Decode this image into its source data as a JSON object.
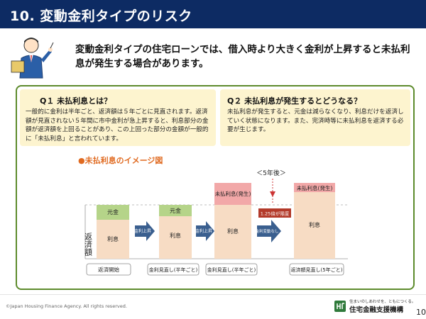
{
  "header": {
    "title": "10.  変動金利タイプのリスク"
  },
  "intro": {
    "text": "変動金利タイプの住宅ローンでは、借入時より大きく金利が上昇すると未払利息が発生する場合があります。"
  },
  "qa": [
    {
      "question": "Q１ 未払利息とは？",
      "answer": "一般的に金利は半年ごと、返済額は５年ごとに見直されます。返済額が見直されない５年間に市中金利が急上昇すると、利息部分の金額が返済額を上回ることがあり、この上回った部分の金額が一般的に「未払利息」と言われています。"
    },
    {
      "question": "Q２ 未払利息が発生するとどうなる？",
      "answer": "未払利息が発生すると、元金は減らなくなり、利息だけを返済していく状態になります。また、完済時等に未払利息を返済する必要が生じます。"
    }
  ],
  "diagram": {
    "label": "●未払利息のイメージ図",
    "axis_label": "返済額",
    "five_years": "＜5年後＞",
    "principal": "元金",
    "interest": "利息",
    "unpaid": "未払利息(発生)",
    "cap": "1.25倍が限度",
    "arrows": [
      "金利上昇",
      "金利上昇",
      "金利変動なし"
    ],
    "bottom_labels": [
      "返済開始",
      "金利見直し(半年ごと)",
      "金利見直し(半年ごと)",
      "返済額見直し(5年ごと)"
    ]
  },
  "footer": {
    "copyright": "©Japan Housing Finance Agency. All rights reserved.",
    "slogan": "住まいのしあわせを、ともにつくる。",
    "org": "住宅金融支援機構",
    "page": "10"
  },
  "colors": {
    "title_bg": "#0d2b63",
    "principal": "#b5d489",
    "interest": "#f7dcc4",
    "unpaid": "#f2a8a8",
    "cap_box": "#b33a2a",
    "arrow": "#3a5f8f",
    "frame": "#5d8b2c",
    "qa_bg": "#fdf4cf"
  }
}
